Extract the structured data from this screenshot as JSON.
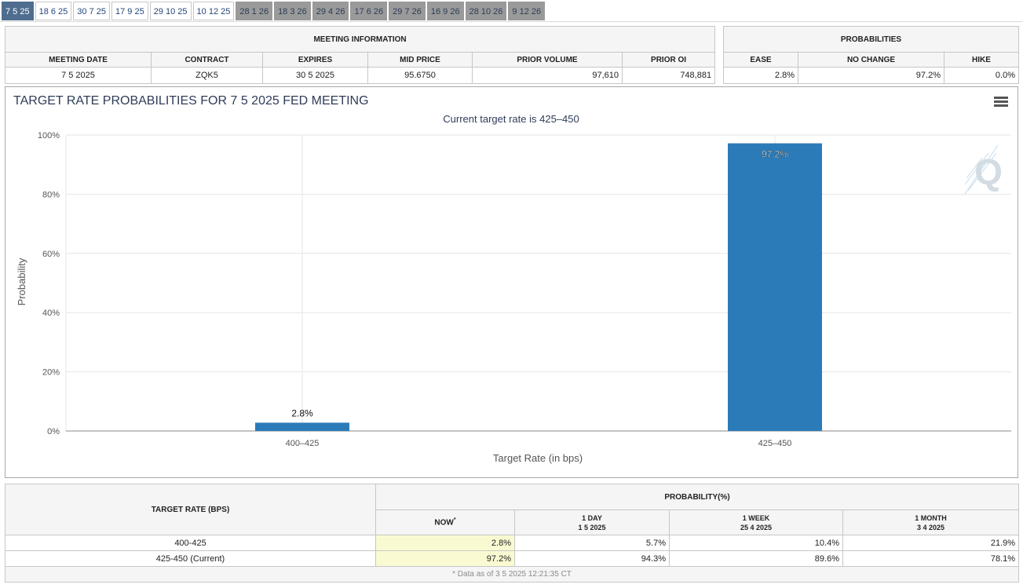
{
  "tabs": [
    {
      "label": "7 5 25",
      "style": "active"
    },
    {
      "label": "18 6 25",
      "style": "light"
    },
    {
      "label": "30 7 25",
      "style": "light"
    },
    {
      "label": "17 9 25",
      "style": "light"
    },
    {
      "label": "29 10 25",
      "style": "light"
    },
    {
      "label": "10 12 25",
      "style": "light"
    },
    {
      "label": "28 1 26",
      "style": "dark"
    },
    {
      "label": "18 3 26",
      "style": "dark"
    },
    {
      "label": "29 4 26",
      "style": "dark"
    },
    {
      "label": "17 6 26",
      "style": "dark"
    },
    {
      "label": "29 7 26",
      "style": "dark"
    },
    {
      "label": "16 9 26",
      "style": "dark"
    },
    {
      "label": "28 10 26",
      "style": "dark"
    },
    {
      "label": "9 12 26",
      "style": "dark"
    }
  ],
  "meeting_info": {
    "title": "MEETING INFORMATION",
    "headers": [
      "MEETING DATE",
      "CONTRACT",
      "EXPIRES",
      "MID PRICE",
      "PRIOR VOLUME",
      "PRIOR OI"
    ],
    "values": [
      "7 5 2025",
      "ZQK5",
      "30 5 2025",
      "95.6750",
      "97,610",
      "748,881"
    ]
  },
  "probabilities": {
    "title": "PROBABILITIES",
    "headers": [
      "EASE",
      "NO CHANGE",
      "HIKE"
    ],
    "values": [
      "2.8%",
      "97.2%",
      "0.0%"
    ]
  },
  "chart_data": {
    "type": "bar",
    "title": "TARGET RATE PROBABILITIES FOR 7 5 2025 FED MEETING",
    "subtitle": "Current target rate is 425–450",
    "xlabel": "Target Rate (in bps)",
    "ylabel": "Probability",
    "categories": [
      "400–425",
      "425–450"
    ],
    "values": [
      2.8,
      97.2
    ],
    "data_labels": [
      "2.8%",
      "97.2%"
    ],
    "ylim": [
      0,
      100
    ],
    "yticks": [
      "0%",
      "20%",
      "40%",
      "60%",
      "80%",
      "100%"
    ],
    "grid": true,
    "bar_color": "#2b7bb9",
    "watermark": "Q"
  },
  "rates_table": {
    "col_target": "TARGET RATE (BPS)",
    "col_prob": "PROBABILITY(%)",
    "periods": [
      {
        "label": "NOW",
        "date": "",
        "marker": "*"
      },
      {
        "label": "1 DAY",
        "date": "1 5 2025",
        "marker": ""
      },
      {
        "label": "1 WEEK",
        "date": "25 4 2025",
        "marker": ""
      },
      {
        "label": "1 MONTH",
        "date": "3 4 2025",
        "marker": ""
      }
    ],
    "rows": [
      {
        "rate": "400-425",
        "values": [
          "2.8%",
          "5.7%",
          "10.4%",
          "21.9%"
        ]
      },
      {
        "rate": "425-450 (Current)",
        "values": [
          "97.2%",
          "94.3%",
          "89.6%",
          "78.1%"
        ]
      }
    ],
    "footnote": "* Data as of 3 5 2025 12:21:35 CT"
  },
  "colors": {
    "accent": "#4f6d8f",
    "now_highlight": "#fafad2",
    "bar": "#2b7bb9"
  }
}
